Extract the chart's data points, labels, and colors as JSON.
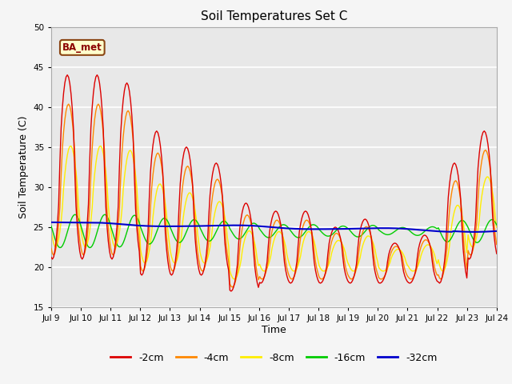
{
  "title": "Soil Temperatures Set C",
  "xlabel": "Time",
  "ylabel": "Soil Temperature (C)",
  "ylim": [
    15,
    50
  ],
  "yticks": [
    15,
    20,
    25,
    30,
    35,
    40,
    45,
    50
  ],
  "annotation": "BA_met",
  "colors": {
    "-2cm": "#dd0000",
    "-4cm": "#ff8800",
    "-8cm": "#ffee00",
    "-16cm": "#00cc00",
    "-32cm": "#0000cc"
  },
  "legend_order": [
    "-2cm",
    "-4cm",
    "-8cm",
    "-16cm",
    "-32cm"
  ],
  "plot_bg": "#e8e8e8",
  "fig_bg": "#f5f5f5",
  "grid_color": "#ffffff",
  "x_start": 9.0,
  "x_end": 24.0,
  "xtick_positions": [
    9,
    10,
    11,
    12,
    13,
    14,
    15,
    16,
    17,
    18,
    19,
    20,
    21,
    22,
    23,
    24
  ],
  "xtick_labels": [
    "Jul 9",
    "Jul 10",
    "Jul 11",
    "Jul 12",
    "Jul 13",
    "Jul 14",
    "Jul 15",
    "Jul 16",
    "Jul 17",
    "Jul 18",
    "Jul 19",
    "Jul 20",
    "Jul 21",
    "Jul 22",
    "Jul 23",
    "Jul 24"
  ]
}
